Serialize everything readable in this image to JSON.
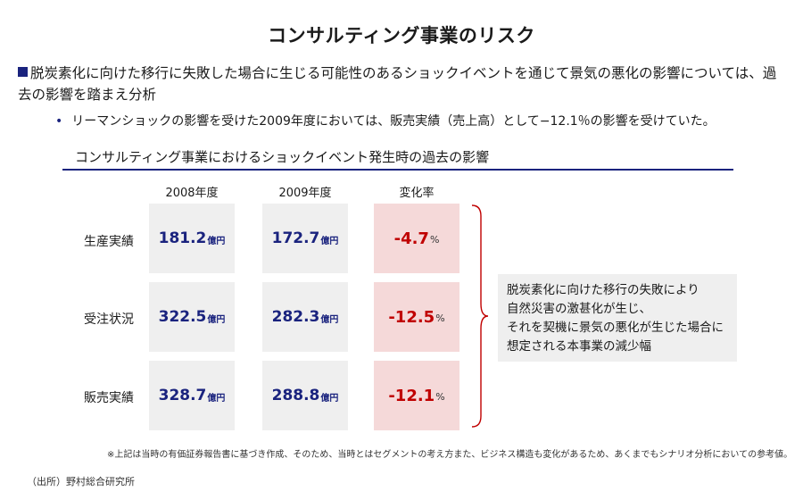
{
  "title": "コンサルティング事業のリスク",
  "bullet_main": "脱炭素化に向けた移行に失敗した場合に生じる可能性のあるショックイベントを通じて景気の悪化の影響については、過去の影響を踏まえ分析",
  "bullet_sub": "リーマンショックの影響を受けた2009年度においては、販売実績（売上高）として−12.1％の影響を受けていた。",
  "chart_title": "コンサルティング事業におけるショックイベント発生時の過去の影響",
  "columns": [
    "2008年度",
    "2009年度",
    "変化率"
  ],
  "rows": [
    {
      "label": "生産実績",
      "fy2008": "181.2",
      "fy2009": "172.7",
      "change": "-4.7"
    },
    {
      "label": "受注状況",
      "fy2008": "322.5",
      "fy2009": "282.3",
      "change": "-12.5"
    },
    {
      "label": "販売実績",
      "fy2008": "328.7",
      "fy2009": "288.8",
      "change": "-12.1"
    }
  ],
  "unit_value": "億円",
  "unit_change": "%",
  "note_lines": [
    "脱炭素化に向けた移行の失敗により",
    "自然災害の激甚化が生じ、",
    "それを契機に景気の悪化が生じた場合に",
    "想定される本事業の減少幅"
  ],
  "footnote": "※上記は当時の有価証券報告書に基づき作成、そのため、当時とはセグメントの考え方また、ビジネス構造も変化があるため、あくまでもシナリオ分析においての参考値。",
  "source": "（出所）野村総合研究所",
  "colors": {
    "navy": "#1a237e",
    "red": "#c00000",
    "cell_bg": "#efefef",
    "change_bg": "#f5d9d9"
  }
}
